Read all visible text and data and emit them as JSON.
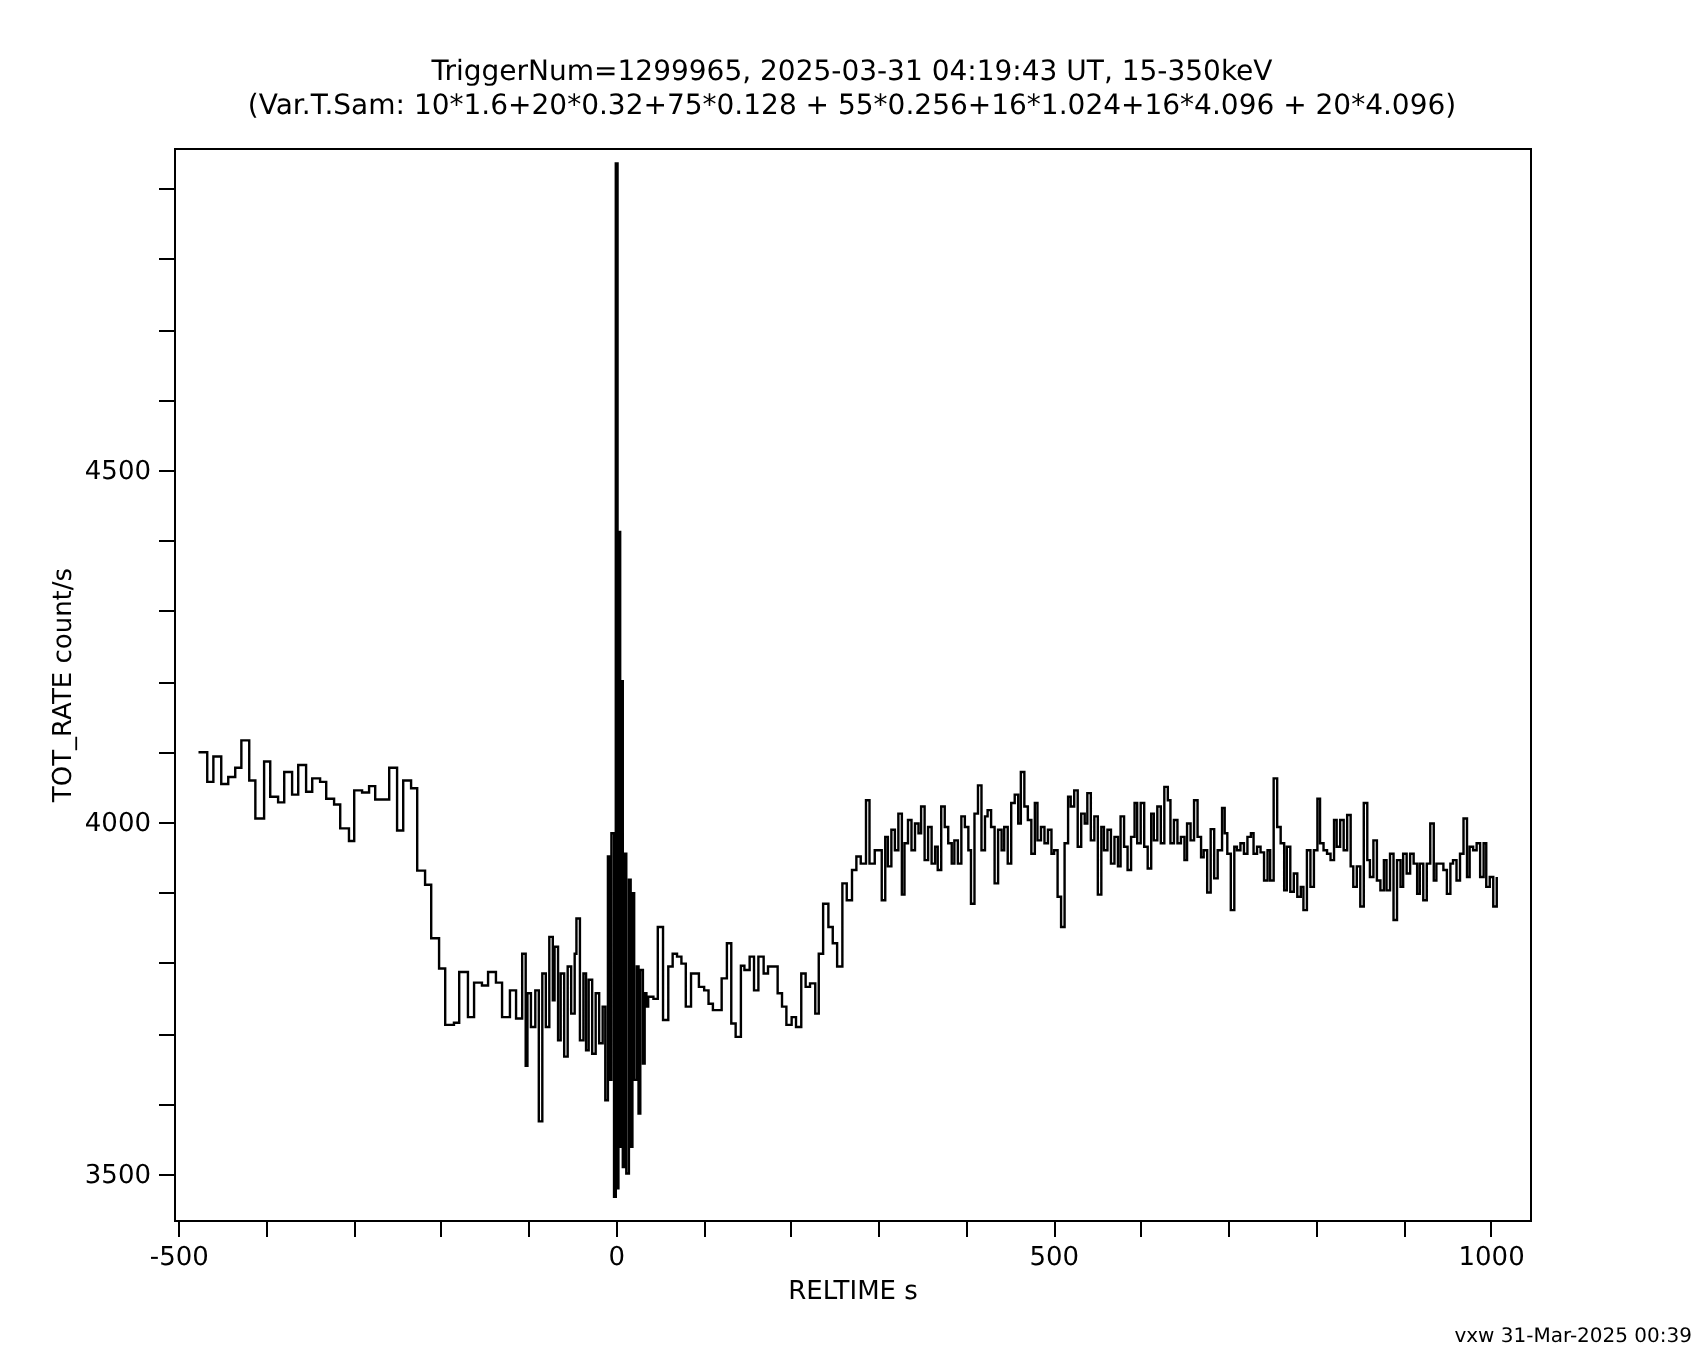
{
  "chart_data": {
    "type": "step",
    "title": "TriggerNum=1299965, 2025-03-31 04:19:43 UT, 15-350keV",
    "subtitle": "(Var.T.Sam: 10*1.6+20*0.32+75*0.128  +  55*0.256+16*1.024+16*4.096  +  20*4.096)",
    "xlabel": "RELTIME  s",
    "ylabel": "TOT_RATE  count/s",
    "annotations": [
      "vxw 31-Mar-2025 00:39"
    ],
    "xlim": [
      -505,
      1045
    ],
    "ylim": [
      3435,
      4957
    ],
    "xticks": [
      -500,
      {
        "value": -400,
        "label": null
      },
      {
        "value": -300,
        "label": null
      },
      {
        "value": -200,
        "label": null
      },
      {
        "value": -100,
        "label": null
      },
      0,
      {
        "value": 100,
        "label": null
      },
      {
        "value": 200,
        "label": null
      },
      {
        "value": 300,
        "label": null
      },
      {
        "value": 400,
        "label": null
      },
      500,
      {
        "value": 600,
        "label": null
      },
      {
        "value": 700,
        "label": null
      },
      {
        "value": 800,
        "label": null
      },
      {
        "value": 900,
        "label": null
      },
      1000
    ],
    "yticks": [
      3500,
      {
        "value": 3600,
        "label": null
      },
      {
        "value": 3700,
        "label": null
      },
      {
        "value": 3800,
        "label": null
      },
      {
        "value": 3900,
        "label": null
      },
      4000,
      {
        "value": 4100,
        "label": null
      },
      {
        "value": 4200,
        "label": null
      },
      {
        "value": 4300,
        "label": null
      },
      {
        "value": 4400,
        "label": null
      },
      4500,
      {
        "value": 4600,
        "label": null
      },
      {
        "value": 4700,
        "label": null
      },
      {
        "value": 4800,
        "label": null
      },
      {
        "value": 4900,
        "label": null
      }
    ],
    "grid": false,
    "series": [
      {
        "color": "#000000",
        "x": [
          -477,
          -467,
          -460,
          -451,
          -443,
          -435,
          -428,
          -419,
          -412,
          -402,
          -395,
          -386,
          -379,
          -370,
          -363,
          -354,
          -347,
          -338,
          -331,
          -322,
          -315,
          -305,
          -299,
          -290,
          -282,
          -275,
          -259,
          -250,
          -243,
          -234,
          -227,
          -218,
          -211,
          -202,
          -195,
          -185,
          -179,
          -169,
          -162,
          -153,
          -146,
          -137,
          -130,
          -121,
          -114,
          -107,
          -103,
          -101,
          -97,
          -92,
          -88,
          -84,
          -80,
          -76,
          -72,
          -70,
          -66,
          -63,
          -59,
          -55,
          -51,
          -47,
          -45,
          -41,
          -37,
          -34,
          -31,
          -27,
          -23,
          -19,
          -15,
          -12,
          -9,
          -7,
          -5,
          -2,
          0,
          2,
          3,
          5,
          6,
          8,
          10,
          12,
          15,
          17,
          19,
          21,
          24,
          26,
          28,
          31,
          33,
          35,
          37,
          43,
          48,
          54,
          60,
          65,
          70,
          75,
          80,
          86,
          90,
          95,
          101,
          106,
          111,
          121,
          127,
          132,
          137,
          143,
          147,
          153,
          158,
          163,
          169,
          174,
          179,
          185,
          190,
          195,
          201,
          206,
          212,
          217,
          222,
          228,
          232,
          237,
          243,
          248,
          253,
          259,
          264,
          270,
          275,
          280,
          286,
          290,
          296,
          304,
          308,
          311,
          315,
          319,
          323,
          327,
          330,
          334,
          338,
          342,
          346,
          349,
          353,
          357,
          361,
          365,
          368,
          372,
          376,
          380,
          384,
          387,
          391,
          395,
          399,
          403,
          406,
          410,
          414,
          418,
          422,
          425,
          429,
          433,
          437,
          441,
          444,
          448,
          452,
          456,
          460,
          463,
          467,
          471,
          475,
          479,
          482,
          486,
          490,
          494,
          498,
          501,
          505,
          509,
          513,
          517,
          520,
          524,
          528,
          532,
          536,
          539,
          543,
          547,
          551,
          555,
          558,
          562,
          566,
          570,
          574,
          577,
          581,
          585,
          589,
          593,
          596,
          600,
          604,
          608,
          612,
          615,
          619,
          623,
          627,
          631,
          634,
          638,
          642,
          646,
          650,
          653,
          657,
          661,
          665,
          669,
          672,
          676,
          680,
          684,
          688,
          693,
          696,
          699,
          703,
          707,
          710,
          714,
          718,
          722,
          726,
          729,
          733,
          737,
          741,
          745,
          748,
          752,
          756,
          760,
          764,
          767,
          771,
          775,
          779,
          783,
          786,
          790,
          794,
          798,
          802,
          805,
          809,
          813,
          817,
          821,
          824,
          828,
          832,
          836,
          840,
          843,
          847,
          851,
          855,
          859,
          862,
          866,
          870,
          874,
          878,
          881,
          885,
          889,
          893,
          897,
          900,
          904,
          908,
          912,
          916,
          919,
          923,
          927,
          931,
          935,
          938,
          942,
          946,
          950,
          954,
          957,
          961,
          965,
          969,
          973,
          976,
          980,
          984,
          988,
          992,
          995,
          999,
          1003,
          1007
        ],
        "values": [
          4099,
          4057,
          4093,
          4054,
          4064,
          4077,
          4116,
          4059,
          4005,
          4086,
          4036,
          4028,
          4071,
          4039,
          4081,
          4043,
          4062,
          4057,
          4033,
          4025,
          3991,
          3973,
          4045,
          4042,
          4051,
          4032,
          4077,
          3988,
          4059,
          4048,
          3931,
          3911,
          3835,
          3792,
          3712,
          3715,
          3787,
          3723,
          3772,
          3768,
          3787,
          3772,
          3723,
          3761,
          3721,
          3813,
          3654,
          3757,
          3709,
          3761,
          3575,
          3785,
          3709,
          3837,
          3747,
          3823,
          3690,
          3785,
          3667,
          3795,
          3728,
          3813,
          3863,
          3690,
          3785,
          3676,
          3776,
          3671,
          3757,
          3686,
          3738,
          3605,
          3951,
          3634,
          3984,
          3468,
          4935,
          3480,
          4412,
          3539,
          4200,
          3510,
          3955,
          3501,
          3918,
          3539,
          3899,
          3634,
          3795,
          3586,
          3790,
          3657,
          3757,
          3738,
          3752,
          3749,
          3851,
          3719,
          3795,
          3813,
          3809,
          3799,
          3738,
          3785,
          3785,
          3766,
          3761,
          3742,
          3733,
          3778,
          3828,
          3714,
          3695,
          3796,
          3790,
          3809,
          3761,
          3809,
          3785,
          3795,
          3795,
          3757,
          3738,
          3712,
          3723,
          3709,
          3785,
          3766,
          3771,
          3728,
          3813,
          3884,
          3851,
          3828,
          3795,
          3913,
          3889,
          3932,
          3951,
          3941,
          4031,
          3941,
          3960,
          3889,
          3979,
          3937,
          3989,
          3960,
          4012,
          3897,
          3970,
          4003,
          3960,
          3998,
          3984,
          4022,
          3946,
          3993,
          3941,
          3965,
          3932,
          4022,
          3993,
          3970,
          3941,
          3974,
          3941,
          4008,
          3993,
          3960,
          3884,
          4012,
          4052,
          3960,
          4008,
          4017,
          3993,
          3913,
          3989,
          3960,
          3993,
          3941,
          4027,
          4039,
          3998,
          4071,
          4022,
          4003,
          3955,
          4027,
          3974,
          3993,
          3970,
          3989,
          3955,
          3960,
          3894,
          3851,
          3970,
          4036,
          4022,
          4045,
          3965,
          4012,
          3998,
          4041,
          3974,
          4008,
          3897,
          3993,
          3960,
          3989,
          3941,
          3979,
          3937,
          4008,
          3965,
          3932,
          3979,
          4027,
          3970,
          4027,
          3965,
          3934,
          4012,
          3974,
          4022,
          3970,
          4050,
          4031,
          3970,
          4003,
          3970,
          3979,
          3946,
          3998,
          3974,
          4031,
          3979,
          3950,
          3960,
          3900,
          3990,
          3920,
          3960,
          4020,
          3984,
          3955,
          3875,
          3965,
          3960,
          3970,
          3955,
          3979,
          3984,
          3955,
          3965,
          3957,
          3917,
          3960,
          3917,
          4062,
          3993,
          3970,
          3903,
          3965,
          3901,
          3927,
          3894,
          3908,
          3875,
          3960,
          3908,
          3960,
          4033,
          3970,
          3960,
          3955,
          3946,
          4003,
          3965,
          4003,
          3960,
          4010,
          3937,
          3908,
          3937,
          3880,
          4027,
          3946,
          3922,
          3974,
          3917,
          3903,
          3946,
          3903,
          3955,
          3861,
          3946,
          3908,
          3955,
          3927,
          3955,
          3941,
          3898,
          3941,
          3889,
          3941,
          3998,
          3917,
          3941,
          3941,
          3932,
          3898,
          3941,
          3946,
          3917,
          3955,
          4005,
          3922,
          3965,
          3960,
          3970,
          3922,
          3970,
          3908,
          3922,
          3880,
          3922
        ]
      }
    ]
  }
}
